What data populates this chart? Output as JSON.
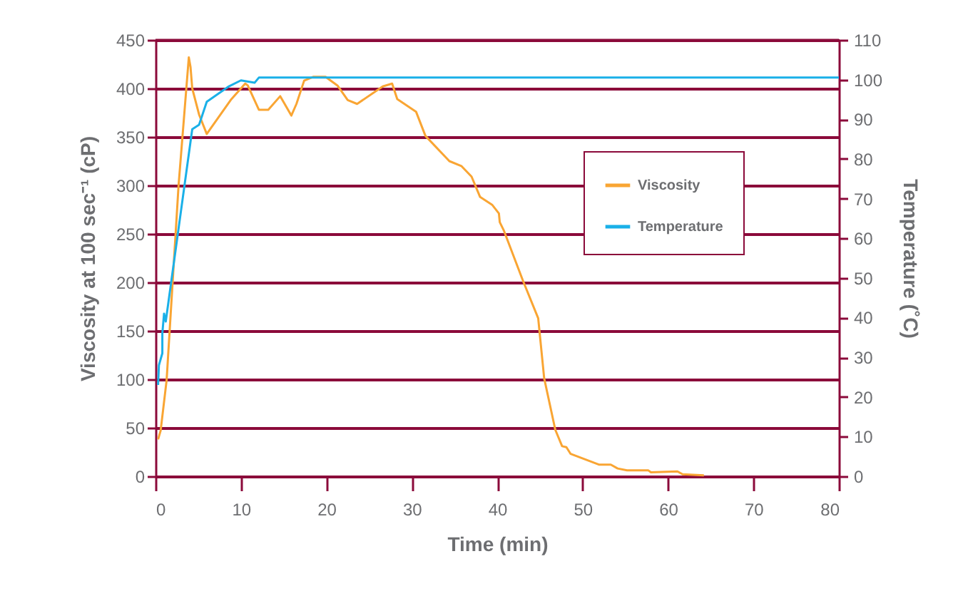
{
  "chart_data": {
    "type": "line",
    "xlabel": "Time (min)",
    "ylabel": "Viscosity at 100 sec⁻¹ (cP)",
    "y2label": "Temperature (˚C)",
    "xlim": [
      0,
      80
    ],
    "xticks": [
      0,
      10,
      20,
      30,
      40,
      50,
      60,
      70,
      80
    ],
    "ylim": [
      0,
      450
    ],
    "yticks": [
      0,
      50,
      100,
      150,
      200,
      250,
      300,
      350,
      400,
      450
    ],
    "y2lim": [
      0,
      110
    ],
    "y2ticks": [
      0,
      10,
      20,
      30,
      40,
      50,
      60,
      70,
      80,
      90,
      100,
      110
    ],
    "grid": "y",
    "legend": "top right",
    "line_style": "solid",
    "series": [
      {
        "name": "Viscosity",
        "color": "#f9a533",
        "x": [
          0.3,
          0.6,
          1.3,
          2.7,
          3.9,
          4.1,
          4.3,
          5.1,
          6.0,
          8.8,
          10.5,
          10.8,
          12.1,
          13.2,
          14.6,
          15.9,
          16.5,
          17.4,
          18.5,
          19.9,
          21.3,
          22.5,
          23.6,
          26.6,
          27.7,
          28.3,
          30.5,
          31.6,
          34.4,
          35.8,
          37.0,
          38.0,
          39.4,
          40.2,
          40.3,
          40.8,
          43.0,
          44.8,
          45.5,
          46.8,
          47.6,
          48.1,
          48.6,
          51.9,
          53.3,
          54.1,
          55.2,
          57.7,
          58.0,
          61.1,
          61.7,
          64.2
        ],
        "values": [
          38,
          47,
          99,
          300,
          432,
          422,
          400,
          373,
          353,
          388,
          405,
          403,
          378,
          378,
          392,
          372,
          384,
          408,
          412,
          412,
          403,
          388,
          384,
          402,
          405,
          389,
          376,
          351,
          325,
          320,
          309,
          288,
          280,
          271,
          262,
          253,
          202,
          163,
          101,
          48,
          31,
          30,
          23,
          12,
          12,
          8,
          6,
          6,
          4,
          5,
          2,
          1
        ]
      },
      {
        "name": "Temperature",
        "color": "#1ab0e8",
        "axis": "y2",
        "x": [
          0.3,
          0.4,
          0.8,
          0.8,
          1.0,
          1.2,
          4.3,
          5.1,
          6.0,
          8.6,
          10.0,
          11.6,
          12.1,
          80
        ],
        "values": [
          23,
          28,
          31,
          36,
          41,
          39,
          87.5,
          88.6,
          94.4,
          98.3,
          99.8,
          99.2,
          100.5,
          100.5
        ]
      }
    ]
  }
}
